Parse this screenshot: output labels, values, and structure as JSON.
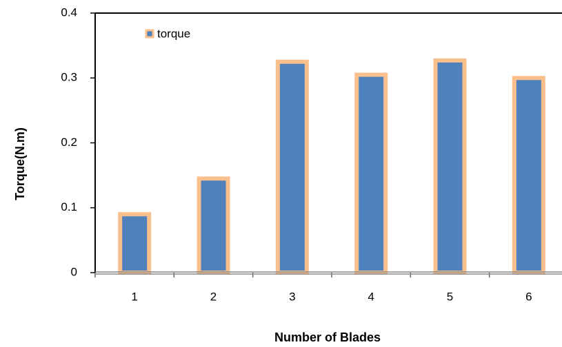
{
  "chart_data": {
    "type": "bar",
    "x_label": "Number of Blades",
    "y_label": "Torque(N.m)",
    "categories": [
      "1",
      "2",
      "3",
      "4",
      "5",
      "6"
    ],
    "series": [
      {
        "name": "torque",
        "color": "#4f81bd",
        "edge_color": "#f9c08e",
        "values": [
          0.09,
          0.145,
          0.325,
          0.305,
          0.327,
          0.3
        ]
      }
    ],
    "ylim": [
      0,
      0.4
    ],
    "yticks": [
      0,
      0.1,
      0.2,
      0.3,
      0.4
    ],
    "legend": "upper left"
  }
}
